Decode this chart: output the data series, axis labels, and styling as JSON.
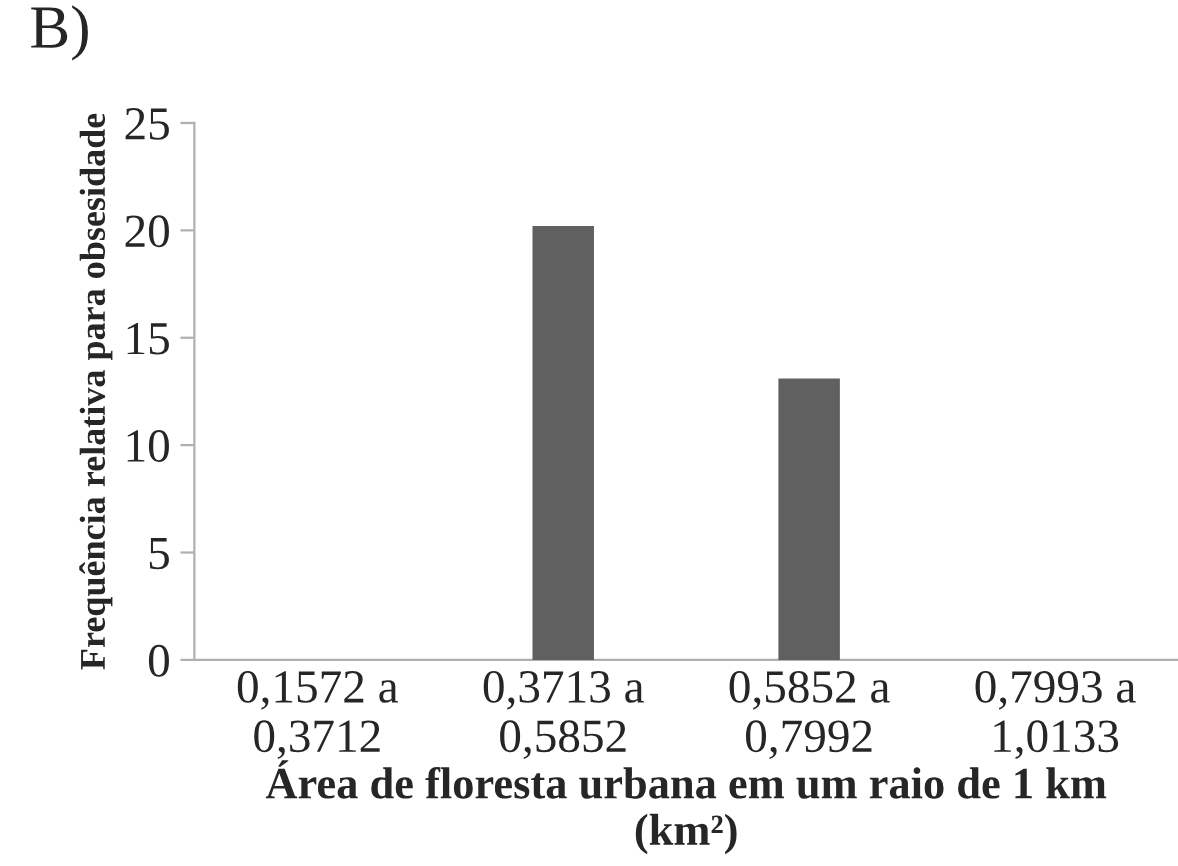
{
  "chart_data": {
    "type": "bar",
    "title": "B)",
    "xlabel": "Área de floresta urbana em um raio de 1 km\n(km²)",
    "ylabel": "Frequência relativa para obsesidade",
    "categories": [
      "0,1572 a\n0,3712",
      "0,3713 a\n0,5852",
      "0,5852 a\n0,7992",
      "0,7993 a\n1,0133"
    ],
    "values": [
      0,
      20.2,
      13.1,
      0
    ],
    "color": "#606060",
    "ylim": [
      0,
      25
    ],
    "yticks": [
      0,
      5,
      10,
      15,
      20,
      25
    ],
    "grid": false
  }
}
